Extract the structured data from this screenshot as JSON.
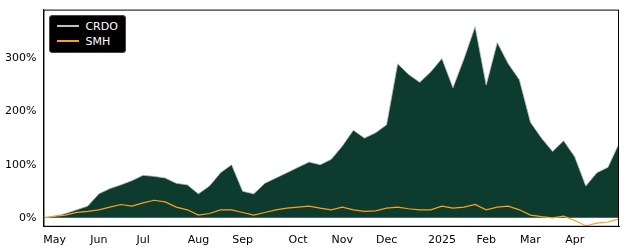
{
  "chart_data": {
    "type": "line",
    "categories": [
      null,
      "May",
      null,
      null,
      null,
      "Jun",
      null,
      null,
      null,
      "Jul",
      null,
      null,
      null,
      null,
      "Aug",
      null,
      null,
      null,
      "Sep",
      null,
      null,
      null,
      null,
      "Oct",
      null,
      null,
      null,
      "Nov",
      null,
      null,
      null,
      "Dec",
      null,
      null,
      null,
      null,
      "2025",
      null,
      null,
      null,
      "Feb",
      null,
      null,
      null,
      "Mar",
      null,
      null,
      null,
      "Apr",
      null,
      null,
      null,
      null
    ],
    "series": [
      {
        "name": "CRDO",
        "type": "area",
        "color": "#0d3b2e",
        "values": [
          0,
          3,
          8,
          15,
          22,
          45,
          55,
          62,
          70,
          80,
          78,
          75,
          65,
          62,
          45,
          60,
          85,
          100,
          50,
          45,
          65,
          75,
          85,
          95,
          105,
          100,
          110,
          135,
          165,
          150,
          160,
          175,
          290,
          270,
          255,
          275,
          300,
          245,
          300,
          360,
          250,
          330,
          290,
          260,
          180,
          150,
          125,
          145,
          115,
          60,
          85,
          95,
          140
        ]
      },
      {
        "name": "SMH",
        "type": "line",
        "color": "#ff9f1a",
        "values": [
          0,
          3,
          5,
          10,
          12,
          15,
          20,
          25,
          22,
          28,
          33,
          30,
          20,
          15,
          5,
          8,
          15,
          15,
          10,
          5,
          10,
          15,
          18,
          20,
          22,
          18,
          15,
          20,
          15,
          12,
          13,
          18,
          20,
          17,
          15,
          15,
          22,
          18,
          20,
          25,
          15,
          20,
          22,
          15,
          5,
          2,
          0,
          3,
          -5,
          -15,
          -10,
          -8,
          -2
        ]
      }
    ],
    "ylim": [
      -17,
      392
    ],
    "yticks": [
      {
        "value": 0,
        "label": "0%"
      },
      {
        "value": 100,
        "label": "100%"
      },
      {
        "value": 200,
        "label": "200%"
      },
      {
        "value": 300,
        "label": "300%"
      }
    ],
    "grid": false,
    "legend": "upper left"
  }
}
